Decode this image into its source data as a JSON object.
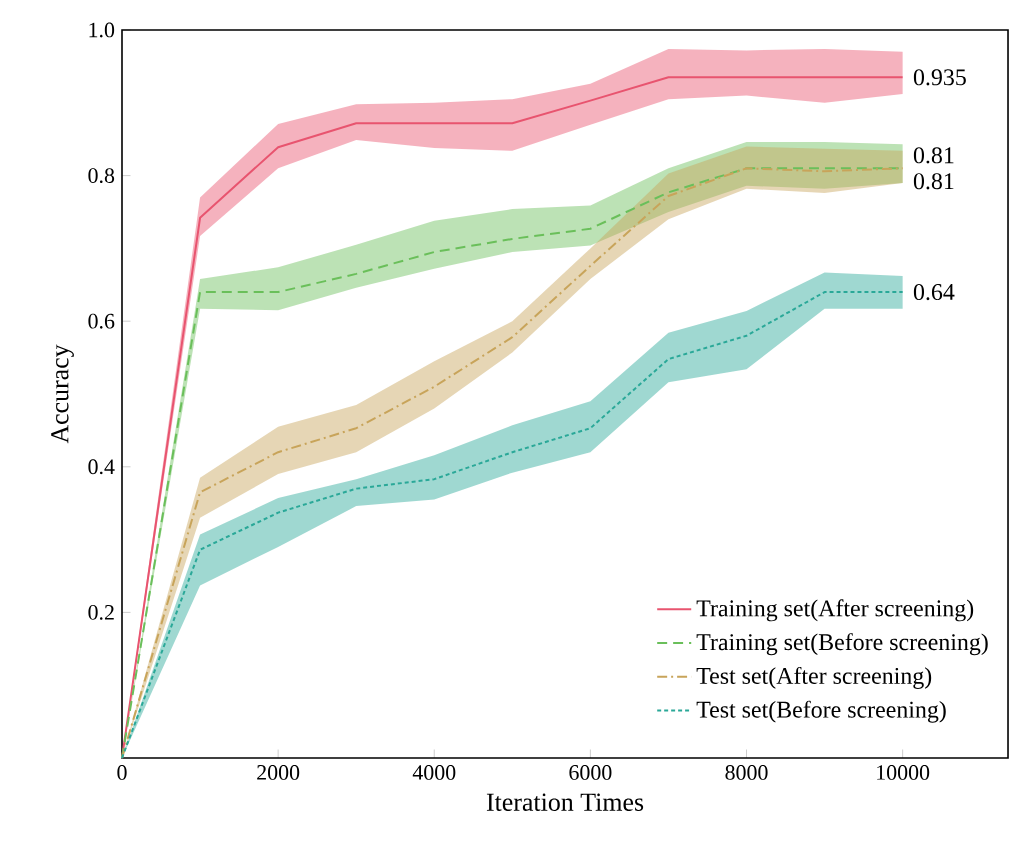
{
  "chart_data": {
    "type": "line",
    "xlabel": "Iteration Times",
    "ylabel": "Accuracy",
    "x": [
      0,
      1000,
      2000,
      3000,
      4000,
      5000,
      6000,
      7000,
      8000,
      9000,
      10000
    ],
    "series": [
      {
        "name": "Training set(After screening)",
        "color": "#e8546f",
        "line_style": "solid",
        "values": [
          0,
          0.742,
          0.839,
          0.872,
          0.872,
          0.872,
          0.903,
          0.935,
          0.935,
          0.935,
          0.935
        ],
        "upper": [
          0,
          0.77,
          0.871,
          0.898,
          0.9,
          0.905,
          0.926,
          0.974,
          0.972,
          0.974,
          0.97
        ],
        "lower": [
          0,
          0.717,
          0.81,
          0.849,
          0.838,
          0.834,
          0.87,
          0.905,
          0.91,
          0.9,
          0.912
        ]
      },
      {
        "name": "Training set(Before screening)",
        "color": "#6abf5a",
        "line_style": "dashed",
        "values": [
          0,
          0.64,
          0.64,
          0.665,
          0.695,
          0.713,
          0.727,
          0.777,
          0.81,
          0.81,
          0.81
        ],
        "upper": [
          0,
          0.658,
          0.674,
          0.705,
          0.738,
          0.754,
          0.759,
          0.81,
          0.846,
          0.846,
          0.843
        ],
        "lower": [
          0,
          0.617,
          0.615,
          0.646,
          0.672,
          0.695,
          0.704,
          0.75,
          0.786,
          0.782,
          0.79
        ]
      },
      {
        "name": "Test set(After screening)",
        "color": "#c8a45a",
        "line_style": "dashdot",
        "values": [
          0,
          0.365,
          0.42,
          0.453,
          0.51,
          0.578,
          0.676,
          0.772,
          0.81,
          0.806,
          0.81
        ],
        "upper": [
          0,
          0.385,
          0.455,
          0.485,
          0.545,
          0.6,
          0.7,
          0.803,
          0.84,
          0.837,
          0.834
        ],
        "lower": [
          0,
          0.33,
          0.39,
          0.42,
          0.48,
          0.557,
          0.658,
          0.74,
          0.782,
          0.776,
          0.79
        ]
      },
      {
        "name": "Test set(Before screening)",
        "color": "#2aa898",
        "line_style": "dotted",
        "values": [
          0,
          0.286,
          0.337,
          0.37,
          0.383,
          0.42,
          0.453,
          0.548,
          0.58,
          0.64,
          0.64
        ],
        "upper": [
          0,
          0.307,
          0.357,
          0.383,
          0.416,
          0.457,
          0.49,
          0.584,
          0.614,
          0.667,
          0.662
        ],
        "lower": [
          0,
          0.237,
          0.29,
          0.346,
          0.355,
          0.392,
          0.42,
          0.516,
          0.534,
          0.617,
          0.617
        ]
      }
    ],
    "xlim": [
      0,
      11350
    ],
    "ylim": [
      0,
      1.0
    ],
    "xticks": [
      0,
      2000,
      4000,
      6000,
      8000,
      10000
    ],
    "yticks": [
      {
        "value": 0.2,
        "label": "0.2"
      },
      {
        "value": 0.4,
        "label": "0.4"
      },
      {
        "value": 0.6,
        "label": "0.6"
      },
      {
        "value": 0.8,
        "label": "0.8"
      },
      {
        "value": 1.0,
        "label": "1.0"
      }
    ],
    "annotations": [
      "0.935",
      "0.81",
      "0.81",
      "0.64"
    ],
    "legend": "bottom right",
    "grid": false,
    "marker": "none"
  }
}
